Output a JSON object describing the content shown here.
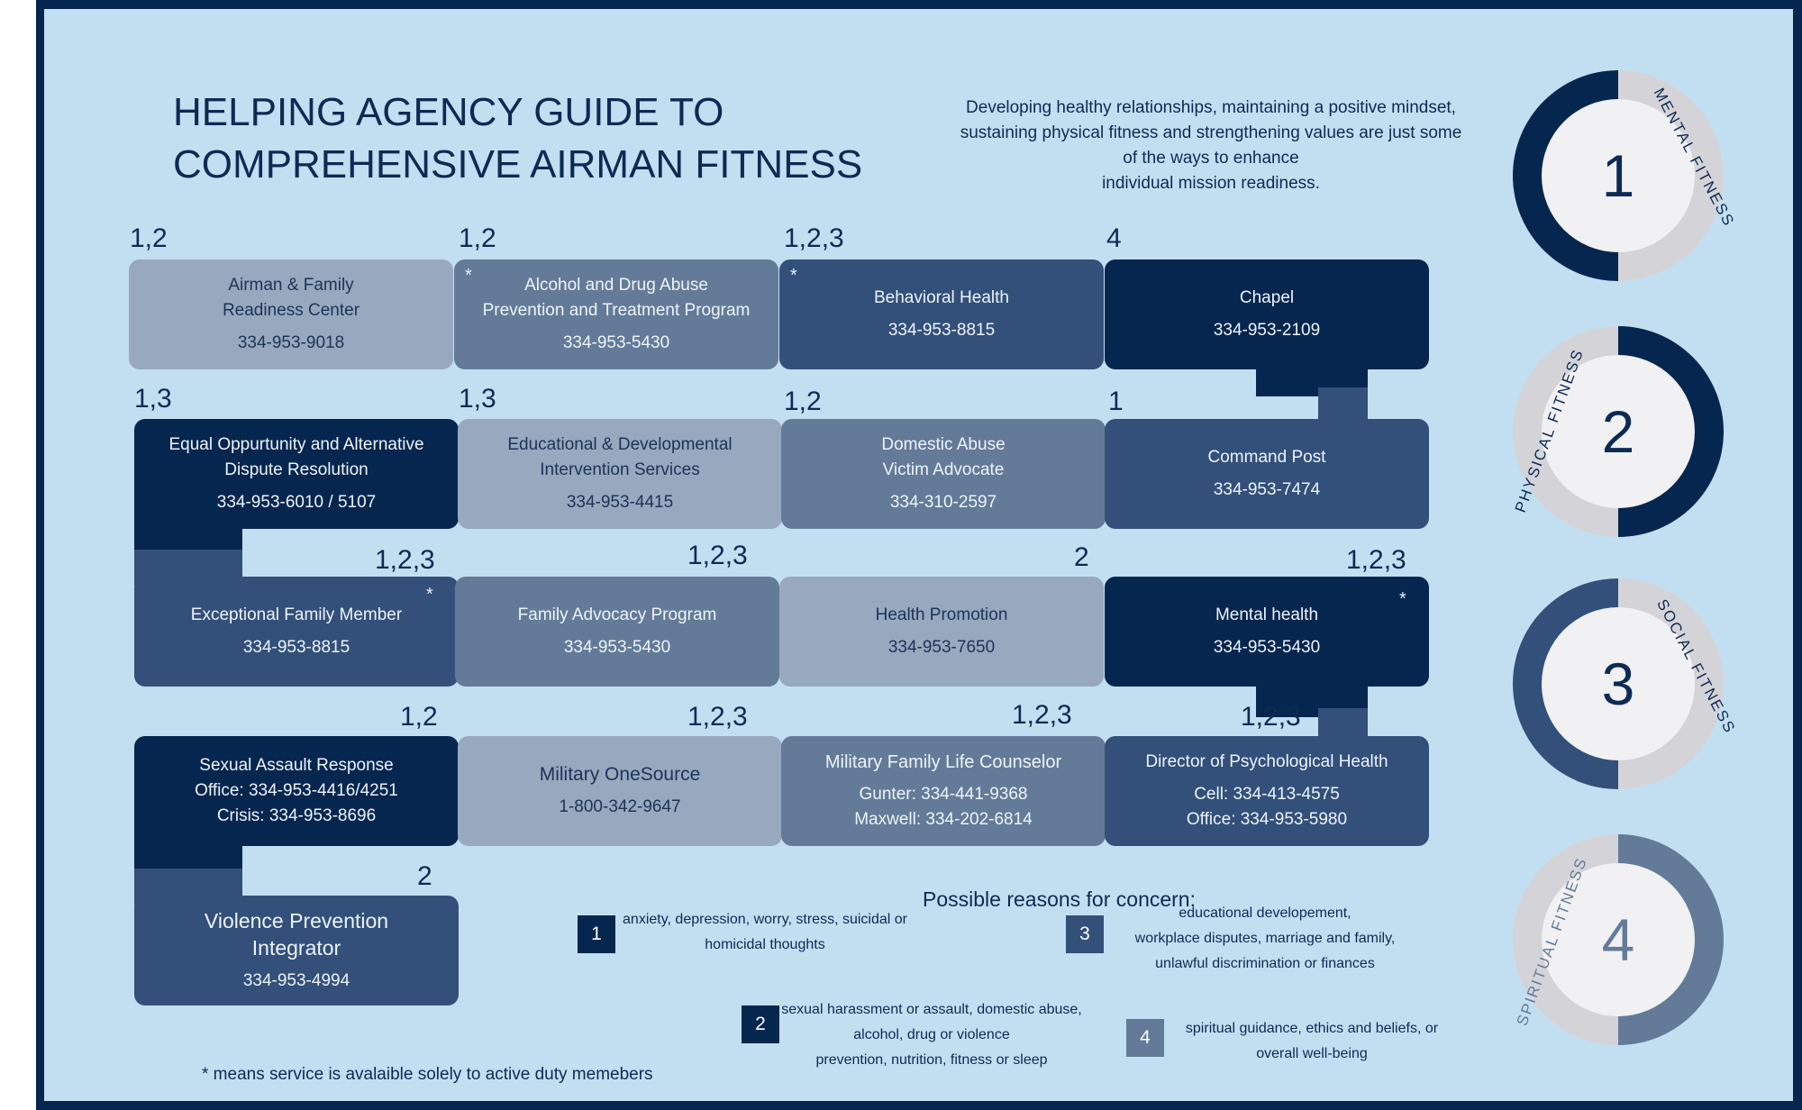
{
  "title_line1": "HELPING AGENCY GUIDE TO",
  "title_line2": "COMPREHENSIVE AIRMAN FITNESS",
  "intro_lines": [
    "Developing healthy relationships, maintaining a positive mindset,",
    "sustaining physical fitness and strengthening values are just some",
    "of the ways to enhance",
    "individual mission readiness."
  ],
  "agencies": [
    {
      "codes": "1,2",
      "active_duty_only": false,
      "name_lines": [
        "Airman & Family",
        "Readiness Center"
      ],
      "phone_lines": [
        "334-953-9018"
      ]
    },
    {
      "codes": "1,2",
      "active_duty_only": true,
      "name_lines": [
        "Alcohol and Drug Abuse",
        "Prevention and Treatment Program"
      ],
      "phone_lines": [
        "334-953-5430"
      ]
    },
    {
      "codes": "1,2,3",
      "active_duty_only": true,
      "name_lines": [
        "Behavioral Health"
      ],
      "phone_lines": [
        "334-953-8815"
      ]
    },
    {
      "codes": "4",
      "active_duty_only": false,
      "name_lines": [
        "Chapel"
      ],
      "phone_lines": [
        "334-953-2109"
      ]
    },
    {
      "codes": "1,3",
      "active_duty_only": false,
      "name_lines": [
        "Equal Oppurtunity and Alternative",
        "Dispute Resolution"
      ],
      "phone_lines": [
        "334-953-6010 / 5107"
      ]
    },
    {
      "codes": "1,3",
      "active_duty_only": false,
      "name_lines": [
        "Educational & Developmental",
        "Intervention Services"
      ],
      "phone_lines": [
        "334-953-4415"
      ]
    },
    {
      "codes": "1,2",
      "active_duty_only": false,
      "name_lines": [
        "Domestic Abuse",
        "Victim Advocate"
      ],
      "phone_lines": [
        "334-310-2597"
      ]
    },
    {
      "codes": "1",
      "active_duty_only": false,
      "name_lines": [
        "Command Post"
      ],
      "phone_lines": [
        "334-953-7474"
      ]
    },
    {
      "codes": "1,2,3",
      "active_duty_only": true,
      "name_lines": [
        "Exceptional Family Member"
      ],
      "phone_lines": [
        "334-953-8815"
      ]
    },
    {
      "codes": "1,2,3",
      "active_duty_only": false,
      "name_lines": [
        "Family Advocacy Program"
      ],
      "phone_lines": [
        "334-953-5430"
      ]
    },
    {
      "codes": "2",
      "active_duty_only": false,
      "name_lines": [
        "Health Promotion"
      ],
      "phone_lines": [
        "334-953-7650"
      ]
    },
    {
      "codes": "1,2,3",
      "active_duty_only": true,
      "name_lines": [
        "Mental health"
      ],
      "phone_lines": [
        "334-953-5430"
      ]
    },
    {
      "codes": "1,2",
      "active_duty_only": false,
      "name_lines": [
        "Sexual Assault Response"
      ],
      "phone_lines": [
        "Office: 334-953-4416/4251",
        "Crisis: 334-953-8696"
      ]
    },
    {
      "codes": "1,2,3",
      "active_duty_only": false,
      "name_lines": [
        "Military OneSource"
      ],
      "phone_lines": [
        "1-800-342-9647"
      ]
    },
    {
      "codes": "1,2,3",
      "active_duty_only": false,
      "name_lines": [
        "Military Family Life Counselor"
      ],
      "phone_lines": [
        "Gunter: 334-441-9368",
        "Maxwell: 334-202-6814"
      ]
    },
    {
      "codes": "1,2,3",
      "active_duty_only": false,
      "name_lines": [
        "Director of Psychological Health"
      ],
      "phone_lines": [
        "Cell: 334-413-4575",
        "Office: 334-953-5980"
      ]
    },
    {
      "codes": "2",
      "active_duty_only": false,
      "name_lines": [
        "Violence Prevention",
        "Integrator"
      ],
      "phone_lines": [
        "334-953-4994"
      ]
    }
  ],
  "star_symbol": "*",
  "fitness_domains": [
    {
      "number": "1",
      "label": "MENTAL FITNESS",
      "color": "#05264f"
    },
    {
      "number": "2",
      "label": "PHYSICAL FITNESS",
      "color": "#05264f"
    },
    {
      "number": "3",
      "label": "SOCIAL FITNESS",
      "color": "#32507a"
    },
    {
      "number": "4",
      "label": "SPIRITUAL FITNESS",
      "color": "#637b98"
    }
  ],
  "legend_title": "Possible reasons for concern:",
  "reasons": [
    {
      "number": "1",
      "lines": [
        "anxiety, depression, worry, stress, suicidal or",
        "homicidal thoughts"
      ],
      "color": "#05264f"
    },
    {
      "number": "2",
      "lines": [
        "sexual harassment or assault, domestic abuse,",
        "alcohol, drug or violence",
        "prevention, nutrition, fitness or sleep"
      ],
      "color": "#05264f"
    },
    {
      "number": "3",
      "lines": [
        "educational developement,",
        "workplace disputes, marriage and family,",
        "unlawful discrimination or finances"
      ],
      "color": "#32507a"
    },
    {
      "number": "4",
      "lines": [
        "spiritual guidance, ethics and beliefs, or",
        "overall well-being"
      ],
      "color": "#637b98"
    }
  ],
  "footnote": "*  means service is avalaible solely to active duty memebers",
  "colors": {
    "navy": "#05264f",
    "dark_blue": "#32507a",
    "mid_blue": "#637b98",
    "light_blue": "#97a8bf",
    "background": "#c2dff1"
  }
}
